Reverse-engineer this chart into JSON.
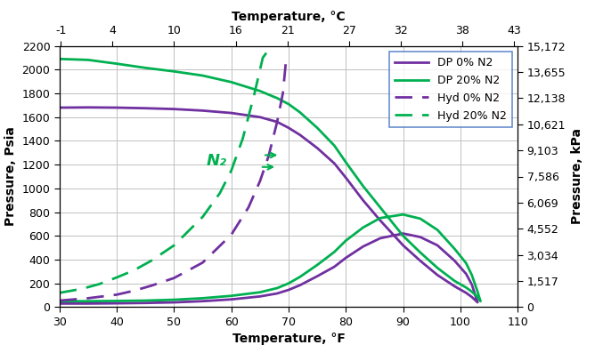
{
  "title_top": "Temperature, °C",
  "xlabel": "Temperature, °F",
  "ylabel_left": "Pressure, Psia",
  "ylabel_right": "Pressure, kPa",
  "x_F_min": 30,
  "x_F_max": 110,
  "y_psia_min": 0,
  "y_psia_max": 2200,
  "top_axis_ticks_C": [
    -1,
    4,
    10,
    16,
    21,
    27,
    32,
    38,
    43
  ],
  "right_axis_ticks_kPa": [
    0,
    1517,
    3034,
    4552,
    6069,
    7586,
    9103,
    10621,
    12138,
    13655,
    15172
  ],
  "legend_labels": [
    "DP 0% N2",
    "Hyd 0% N2",
    "DP 20% N2",
    "Hyd 20% N2"
  ],
  "color_purple": "#7030A0",
  "color_green": "#00B050",
  "annotation_text": "N₂",
  "annotation_color": "#00B050",
  "bg_color": "#FFFFFF",
  "grid_color": "#C0C0C0",
  "dp_0N2_T_upper": [
    30,
    35,
    40,
    45,
    50,
    55,
    60,
    65,
    68,
    70,
    72,
    75,
    78,
    80,
    83,
    86,
    90,
    93,
    96,
    99,
    101,
    102,
    103
  ],
  "dp_0N2_P_upper": [
    1680,
    1682,
    1680,
    1675,
    1668,
    1655,
    1635,
    1600,
    1560,
    1510,
    1450,
    1340,
    1210,
    1090,
    900,
    730,
    520,
    390,
    270,
    175,
    120,
    85,
    40
  ],
  "dp_0N2_T_lower": [
    30,
    35,
    40,
    45,
    50,
    55,
    60,
    65,
    68,
    70,
    72,
    75,
    78,
    80,
    83,
    86,
    90,
    93,
    96,
    99,
    101,
    102,
    103
  ],
  "dp_0N2_P_lower": [
    30,
    30,
    32,
    35,
    40,
    50,
    65,
    90,
    115,
    145,
    185,
    260,
    340,
    415,
    510,
    580,
    620,
    590,
    520,
    390,
    280,
    190,
    40
  ],
  "dp_20N2_T_upper": [
    30,
    35,
    40,
    45,
    50,
    55,
    60,
    65,
    68,
    70,
    72,
    75,
    78,
    80,
    83,
    86,
    90,
    93,
    96,
    99,
    101,
    102,
    103,
    103.5
  ],
  "dp_20N2_P_upper": [
    2090,
    2082,
    2050,
    2015,
    1985,
    1950,
    1895,
    1820,
    1760,
    1710,
    1640,
    1510,
    1360,
    1220,
    1020,
    840,
    600,
    460,
    330,
    220,
    165,
    130,
    85,
    50
  ],
  "dp_20N2_T_lower": [
    30,
    35,
    40,
    45,
    50,
    55,
    60,
    65,
    68,
    70,
    72,
    75,
    78,
    80,
    83,
    86,
    90,
    93,
    96,
    99,
    101,
    102,
    103,
    103.5
  ],
  "dp_20N2_P_lower": [
    50,
    50,
    52,
    55,
    62,
    75,
    95,
    125,
    160,
    200,
    255,
    355,
    465,
    560,
    670,
    750,
    780,
    745,
    650,
    490,
    370,
    270,
    130,
    50
  ],
  "hyd_0N2_T": [
    30,
    35,
    40,
    43,
    46,
    50,
    55,
    60,
    63,
    65,
    66.5,
    68,
    69,
    69.5
  ],
  "hyd_0N2_P": [
    55,
    75,
    105,
    138,
    180,
    245,
    375,
    610,
    840,
    1060,
    1270,
    1560,
    1800,
    2050
  ],
  "hyd_20N2_T": [
    30,
    34,
    37,
    40,
    43,
    46,
    50,
    55,
    58,
    60,
    62,
    64,
    65.5,
    67,
    68,
    69
  ],
  "hyd_20N2_P": [
    120,
    155,
    195,
    250,
    310,
    390,
    520,
    760,
    960,
    1150,
    1420,
    1790,
    2100,
    2200,
    2200,
    2200
  ]
}
